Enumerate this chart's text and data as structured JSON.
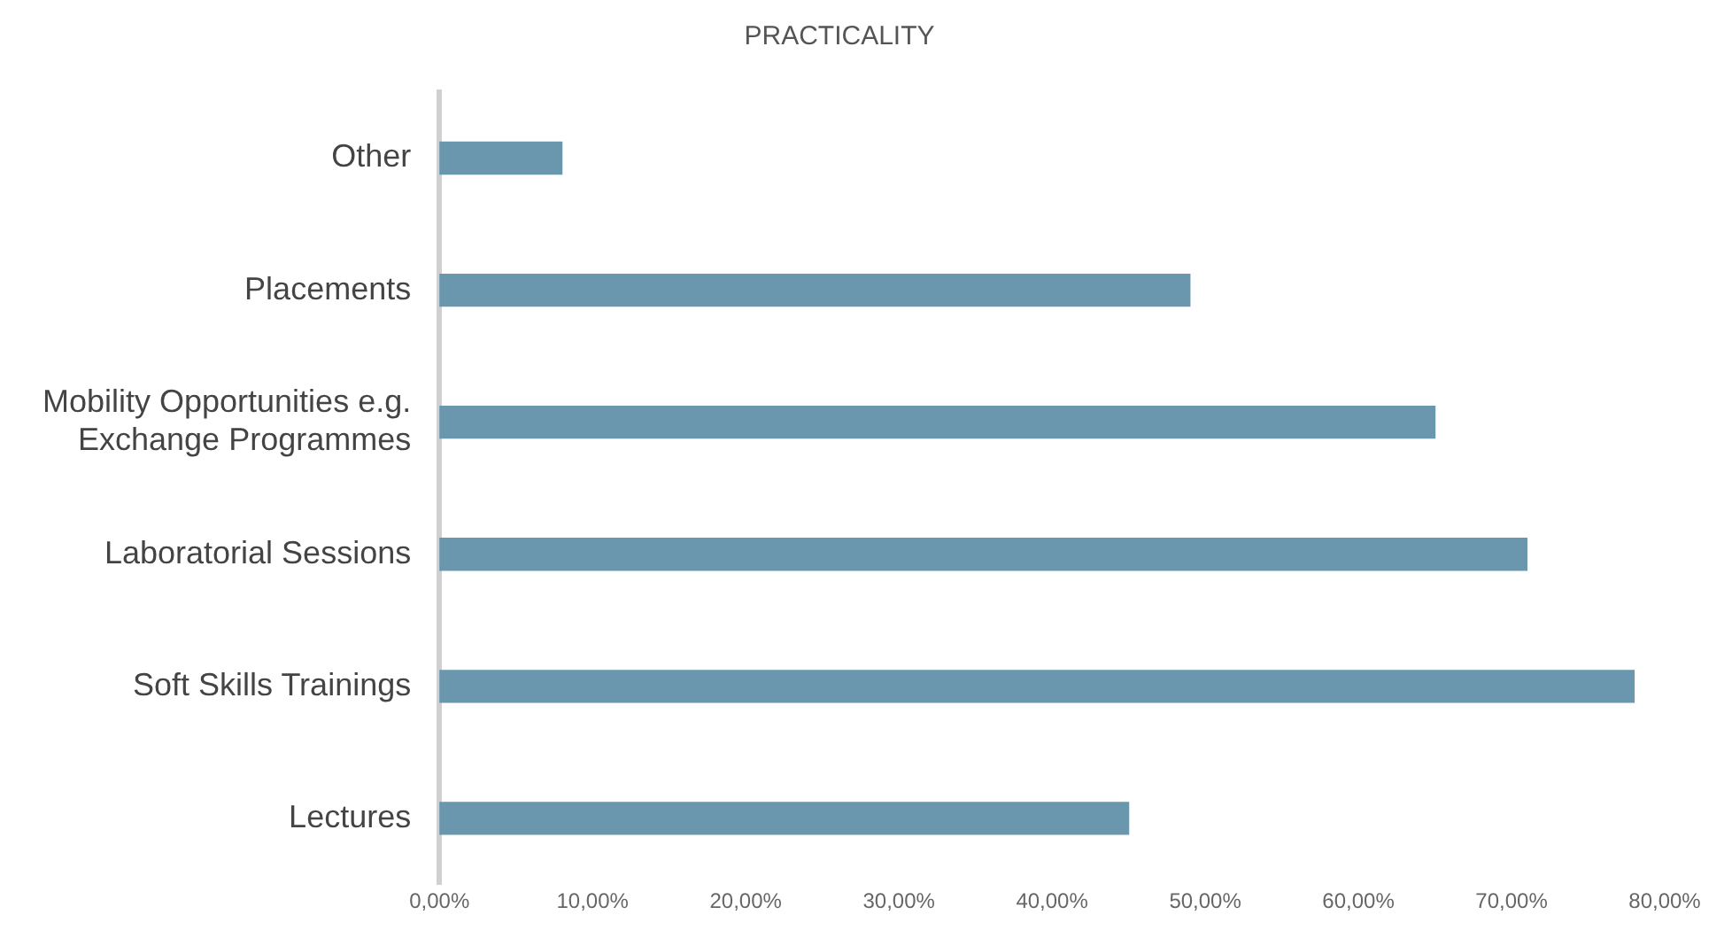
{
  "chart_data": {
    "type": "bar",
    "orientation": "horizontal",
    "title": "PRACTICALITY",
    "categories": [
      "Other",
      "Placements",
      "Mobility Opportunities e.g. Exchange Programmes",
      "Laboratorial Sessions",
      "Soft Skills Trainings",
      "Lectures"
    ],
    "values": [
      8,
      49,
      65,
      71,
      78,
      45
    ],
    "color": "#6b97ae",
    "xlim": [
      0,
      80
    ],
    "xticks": [
      {
        "value": 0,
        "label": "0,00%"
      },
      {
        "value": 10,
        "label": "10,00%"
      },
      {
        "value": 20,
        "label": "20,00%"
      },
      {
        "value": 30,
        "label": "30,00%"
      },
      {
        "value": 40,
        "label": "40,00%"
      },
      {
        "value": 50,
        "label": "50,00%"
      },
      {
        "value": 60,
        "label": "60,00%"
      },
      {
        "value": 70,
        "label": "70,00%"
      },
      {
        "value": 80,
        "label": "80,00%"
      }
    ],
    "grid": false,
    "legend": false
  }
}
